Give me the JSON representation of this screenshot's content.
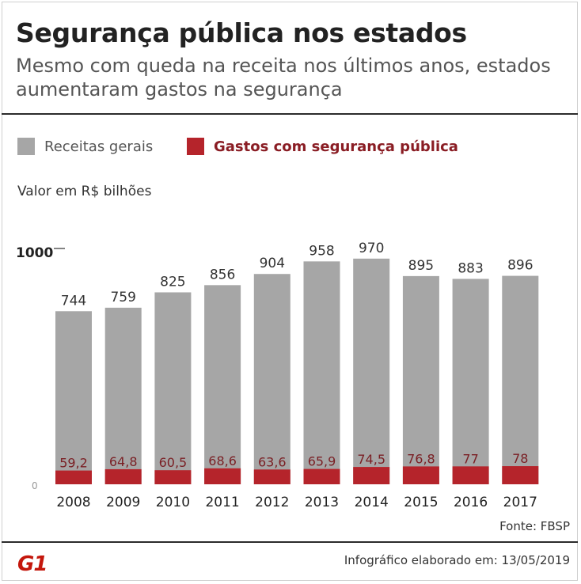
{
  "header": {
    "title": "Segurança pública nos estados",
    "subtitle": "Mesmo com queda na receita nos últimos anos, estados aumentaram gastos na segurança"
  },
  "legend": {
    "revenue_label": "Receitas gerais",
    "spending_label": "Gastos com segurança pública"
  },
  "colors": {
    "revenue": "#a6a6a6",
    "spending": "#b5242b",
    "spending_text": "#7a1f24",
    "axis": "#999999"
  },
  "unit_label": "Valor em R$ bilhões",
  "footer": {
    "source": "Fonte: FBSP",
    "logo": "G1",
    "credit": "Infográfico elaborado em: 13/05/2019"
  },
  "chart_data": {
    "type": "bar",
    "title": "Segurança pública nos estados",
    "ylabel": "Valor em R$ bilhões",
    "xlabel": "",
    "ylim": [
      0,
      1000
    ],
    "yticks": [
      "1000",
      "0"
    ],
    "categories": [
      "2008",
      "2009",
      "2010",
      "2011",
      "2012",
      "2013",
      "2014",
      "2015",
      "2016",
      "2017"
    ],
    "series": [
      {
        "name": "Receitas gerais",
        "values": [
          744,
          759,
          825,
          856,
          904,
          958,
          970,
          895,
          883,
          896
        ]
      },
      {
        "name": "Gastos com segurança pública",
        "values": [
          59.2,
          64.8,
          60.5,
          68.6,
          63.6,
          65.9,
          74.5,
          76.8,
          77,
          78
        ]
      }
    ],
    "value_labels": {
      "revenue": [
        "744",
        "759",
        "825",
        "856",
        "904",
        "958",
        "970",
        "895",
        "883",
        "896"
      ],
      "spending": [
        "59,2",
        "64,8",
        "60,5",
        "68,6",
        "63,6",
        "65,9",
        "74,5",
        "76,8",
        "77",
        "78"
      ]
    },
    "grid": false,
    "legend_position": "top-left"
  }
}
